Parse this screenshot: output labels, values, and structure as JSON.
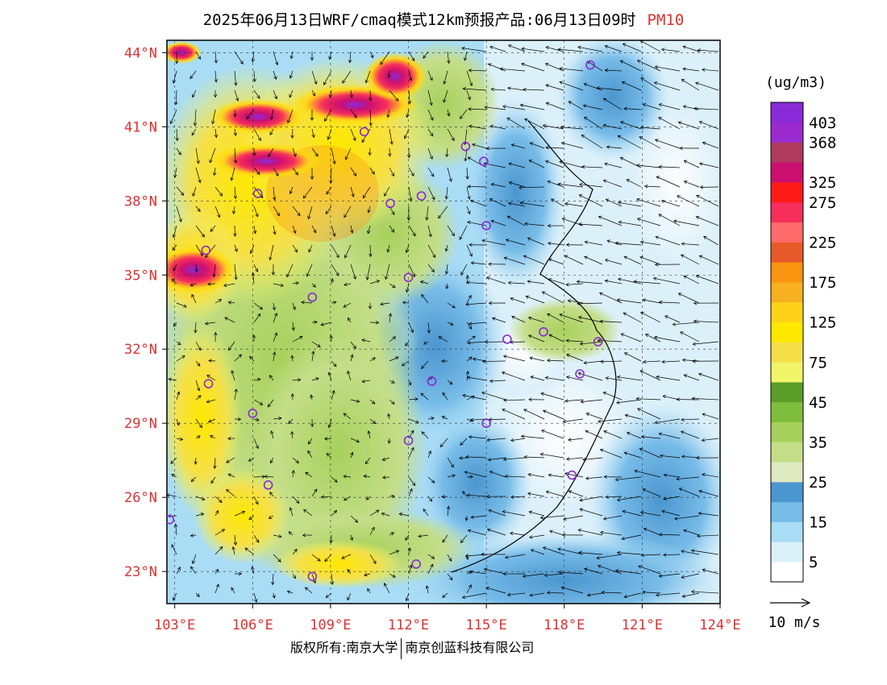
{
  "title": {
    "main": "2025年06月13日WRF/cmaq模式12km预报产品:06月13日09时",
    "pollutant": "PM10"
  },
  "map": {
    "lon_min": 102.7,
    "lon_max": 124,
    "lat_min": 21.7,
    "lat_max": 44.5,
    "lat_ticks": [
      {
        "value": 44,
        "label": "44°N"
      },
      {
        "value": 41,
        "label": "41°N"
      },
      {
        "value": 38,
        "label": "38°N"
      },
      {
        "value": 35,
        "label": "35°N"
      },
      {
        "value": 32,
        "label": "32°N"
      },
      {
        "value": 29,
        "label": "29°N"
      },
      {
        "value": 26,
        "label": "26°N"
      },
      {
        "value": 23,
        "label": "23°N"
      }
    ],
    "lon_ticks": [
      {
        "value": 103,
        "label": "103°E"
      },
      {
        "value": 106,
        "label": "106°E"
      },
      {
        "value": 109,
        "label": "109°E"
      },
      {
        "value": 112,
        "label": "112°E"
      },
      {
        "value": 115,
        "label": "115°E"
      },
      {
        "value": 118,
        "label": "118°E"
      },
      {
        "value": 121,
        "label": "121°E"
      },
      {
        "value": 124,
        "label": "124°E"
      }
    ],
    "stations": [
      {
        "lon": 119.0,
        "lat": 43.5
      },
      {
        "lon": 110.3,
        "lat": 40.8
      },
      {
        "lon": 114.2,
        "lat": 40.2
      },
      {
        "lon": 114.9,
        "lat": 39.6
      },
      {
        "lon": 106.2,
        "lat": 38.3
      },
      {
        "lon": 111.3,
        "lat": 37.9
      },
      {
        "lon": 112.5,
        "lat": 38.2
      },
      {
        "lon": 115.0,
        "lat": 37.0
      },
      {
        "lon": 104.2,
        "lat": 36.0
      },
      {
        "lon": 112.0,
        "lat": 34.9
      },
      {
        "lon": 108.3,
        "lat": 34.1
      },
      {
        "lon": 115.8,
        "lat": 32.4
      },
      {
        "lon": 117.2,
        "lat": 32.7
      },
      {
        "lon": 119.3,
        "lat": 32.3
      },
      {
        "lon": 118.6,
        "lat": 31.0
      },
      {
        "lon": 104.3,
        "lat": 30.6
      },
      {
        "lon": 112.9,
        "lat": 30.7
      },
      {
        "lon": 106.0,
        "lat": 29.4
      },
      {
        "lon": 115.0,
        "lat": 29.0
      },
      {
        "lon": 112.0,
        "lat": 28.3
      },
      {
        "lon": 106.6,
        "lat": 26.5
      },
      {
        "lon": 118.3,
        "lat": 26.9
      },
      {
        "lon": 102.8,
        "lat": 25.1
      },
      {
        "lon": 108.3,
        "lat": 22.8
      },
      {
        "lon": 112.3,
        "lat": 23.3
      }
    ]
  },
  "colorbar": {
    "unit": "(ug/m3)",
    "colors": [
      "#ffffff",
      "#dcf0fa",
      "#a9dcf5",
      "#78bce8",
      "#4b96cf",
      "#dfe9c0",
      "#c4de88",
      "#a7d05c",
      "#7fbe3c",
      "#5a9e28",
      "#f2f56a",
      "#f5e04a",
      "#ffe800",
      "#ffd21a",
      "#f7b020",
      "#f99410",
      "#e85a2a",
      "#ff6a6a",
      "#f52f5a",
      "#ff1a1a",
      "#cc1070",
      "#b03a60",
      "#9a2ad0",
      "#8a2ad8"
    ],
    "labels": [
      {
        "index": 1,
        "text": "5"
      },
      {
        "index": 3,
        "text": "15"
      },
      {
        "index": 5,
        "text": "25"
      },
      {
        "index": 7,
        "text": "35"
      },
      {
        "index": 9,
        "text": "45"
      },
      {
        "index": 11,
        "text": "75"
      },
      {
        "index": 13,
        "text": "125"
      },
      {
        "index": 15,
        "text": "175"
      },
      {
        "index": 17,
        "text": "225"
      },
      {
        "index": 19,
        "text": "275"
      },
      {
        "index": 20,
        "text": "325"
      },
      {
        "index": 22,
        "text": "368"
      },
      {
        "index": 23,
        "text": "403"
      }
    ]
  },
  "wind_reference": {
    "label": "10 m/s"
  },
  "footer": {
    "left": "版权所有:南京大学",
    "right": "南京创蓝科技有限公司"
  }
}
